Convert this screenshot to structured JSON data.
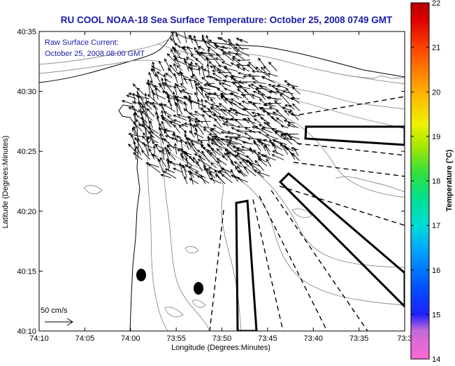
{
  "chart_data": {
    "type": "map-vector-field",
    "title": "RU COOL  NOAA-18  Sea Surface Temperature:  October 25, 2008 0749 GMT",
    "subtitle_line1": "Raw Surface Current:",
    "subtitle_line2": "October 25, 2008 08:00 GMT",
    "xlabel": "Longitude (Degrees:Minutes)",
    "ylabel": "Latitude (Degrees:Minutes)",
    "x_ticks": [
      "74:10",
      "74:05",
      "74:00",
      "73:55",
      "73:50",
      "73:45",
      "73:40",
      "73:35",
      "73:3"
    ],
    "y_ticks": [
      "40:10",
      "40:15",
      "40:20",
      "40:25",
      "40:30",
      "40:35"
    ],
    "scale_label": "50 cm/s",
    "colorbar": {
      "label": "Temperature (°C)",
      "range": [
        14,
        22
      ],
      "ticks": [
        "14",
        "15",
        "16",
        "17",
        "18",
        "19",
        "20",
        "21",
        "22"
      ]
    },
    "colors": {
      "title": "#1a1aa8",
      "subtitle": "#1a1aa8",
      "axis": "#000000",
      "contour": "#8c8c8c"
    }
  }
}
